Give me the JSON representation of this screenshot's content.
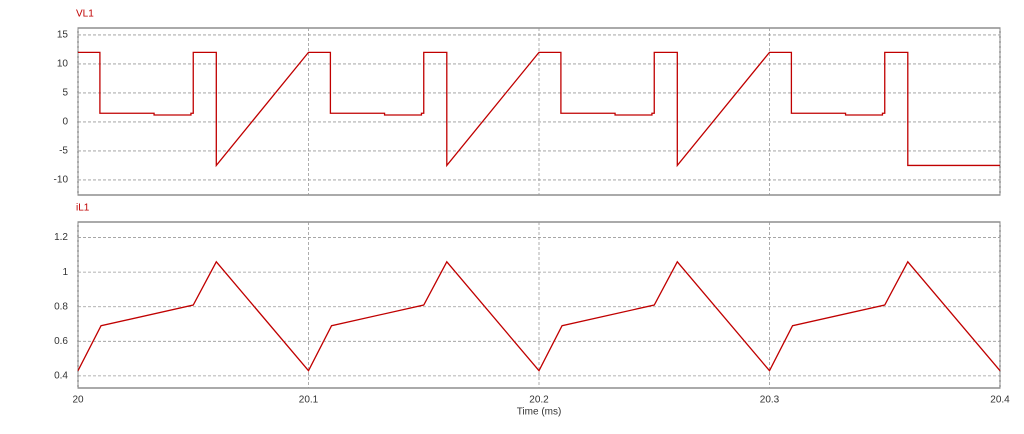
{
  "chart_data": [
    {
      "type": "line",
      "title": "VL1",
      "xlim": [
        20,
        20.4
      ],
      "ylim": [
        -12.6,
        16.2
      ],
      "yticks": [
        15,
        10,
        5,
        0,
        -5,
        -10
      ],
      "grid": true,
      "series": [
        {
          "name": "VL1",
          "color": "#c00000",
          "x": [
            20,
            20.0095,
            20.0095,
            20.033,
            20.033,
            20.049,
            20.049,
            20.05,
            20.05,
            20.06,
            20.06,
            20.1,
            20.1095,
            20.1095,
            20.133,
            20.133,
            20.149,
            20.149,
            20.15,
            20.15,
            20.16,
            20.16,
            20.2,
            20.2095,
            20.2095,
            20.233,
            20.233,
            20.249,
            20.249,
            20.25,
            20.25,
            20.26,
            20.26,
            20.3,
            20.3095,
            20.3095,
            20.333,
            20.333,
            20.349,
            20.349,
            20.35,
            20.35,
            20.36,
            20.36,
            20.4
          ],
          "values": [
            12,
            12,
            1.5,
            1.5,
            1.2,
            1.2,
            1.5,
            1.5,
            12,
            12,
            -7.5,
            12,
            12,
            1.5,
            1.5,
            1.2,
            1.2,
            1.5,
            1.5,
            12,
            12,
            -7.5,
            12,
            12,
            1.5,
            1.5,
            1.2,
            1.2,
            1.5,
            1.5,
            12,
            12,
            -7.5,
            12,
            12,
            1.5,
            1.5,
            1.2,
            1.2,
            1.5,
            1.5,
            12,
            12,
            -7.5,
            -7.5
          ]
        }
      ]
    },
    {
      "type": "line",
      "title": "iL1",
      "x_label": "Time (ms)",
      "xlim": [
        20,
        20.4
      ],
      "xticks": [
        20,
        20.1,
        20.2,
        20.3,
        20.4
      ],
      "ylim": [
        0.33,
        1.29
      ],
      "yticks": [
        1.2,
        1,
        0.8,
        0.6,
        0.4
      ],
      "grid": true,
      "series": [
        {
          "name": "iL1",
          "color": "#c00000",
          "x": [
            20,
            20.01,
            20.05,
            20.06,
            20.1,
            20.11,
            20.15,
            20.16,
            20.2,
            20.21,
            20.25,
            20.26,
            20.3,
            20.31,
            20.35,
            20.36,
            20.4
          ],
          "values": [
            0.43,
            0.69,
            0.81,
            1.06,
            0.43,
            0.69,
            0.81,
            1.06,
            0.43,
            0.69,
            0.81,
            1.06,
            0.43,
            0.69,
            0.81,
            1.06,
            0.43
          ]
        }
      ]
    }
  ]
}
